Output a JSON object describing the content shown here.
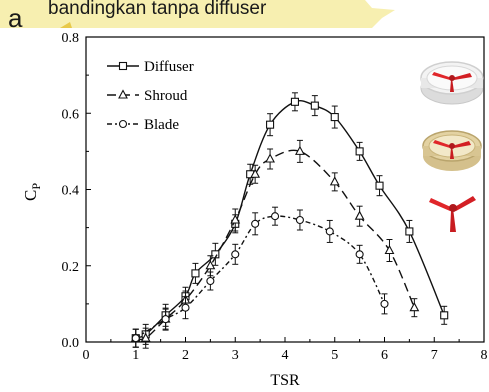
{
  "banner": {
    "text": "bandingkan tanpa diffuser"
  },
  "panel_label": "a",
  "colors": {
    "banner_fill": "#f7efb0",
    "banner_edge": "#e8c94a",
    "series": "#111111",
    "rotor_red": "#e0262a",
    "duct_white": "#ececec",
    "duct_tan": "#e3d2a2"
  },
  "icons": [
    "diffuser-rotor-icon",
    "shroud-rotor-icon",
    "bare-blade-rotor-icon"
  ],
  "chart_data": {
    "type": "line",
    "xlabel": "TSR",
    "ylabel": "C_P",
    "xlim": [
      0,
      8
    ],
    "ylim": [
      0,
      0.8
    ],
    "xticks": [
      "0",
      "1",
      "2",
      "3",
      "4",
      "5",
      "6",
      "7",
      "8"
    ],
    "yticks": [
      "0.0",
      "0.2",
      "0.4",
      "0.6",
      "0.8"
    ],
    "legend_position": "top-left",
    "series": [
      {
        "name": "Diffuser",
        "marker": "square",
        "line": "solid",
        "x": [
          1.0,
          1.2,
          1.6,
          2.0,
          2.2,
          2.6,
          3.0,
          3.3,
          3.7,
          4.2,
          4.6,
          5.0,
          5.5,
          5.9,
          6.5,
          7.2
        ],
        "y": [
          0.01,
          0.02,
          0.07,
          0.12,
          0.18,
          0.23,
          0.31,
          0.44,
          0.57,
          0.63,
          0.62,
          0.59,
          0.5,
          0.41,
          0.29,
          0.07
        ]
      },
      {
        "name": "Shroud",
        "marker": "triangle",
        "line": "dashed",
        "x": [
          1.0,
          1.2,
          1.6,
          2.0,
          2.5,
          3.0,
          3.4,
          3.7,
          4.3,
          5.0,
          5.5,
          6.1,
          6.6
        ],
        "y": [
          0.01,
          0.01,
          0.06,
          0.11,
          0.2,
          0.32,
          0.44,
          0.48,
          0.5,
          0.42,
          0.33,
          0.24,
          0.09
        ]
      },
      {
        "name": "Blade",
        "marker": "circle",
        "line": "dash-dot",
        "x": [
          1.0,
          1.6,
          2.0,
          2.5,
          3.0,
          3.4,
          3.8,
          4.3,
          4.9,
          5.5,
          6.0
        ],
        "y": [
          0.01,
          0.06,
          0.09,
          0.16,
          0.23,
          0.31,
          0.33,
          0.32,
          0.29,
          0.23,
          0.1
        ]
      }
    ]
  }
}
